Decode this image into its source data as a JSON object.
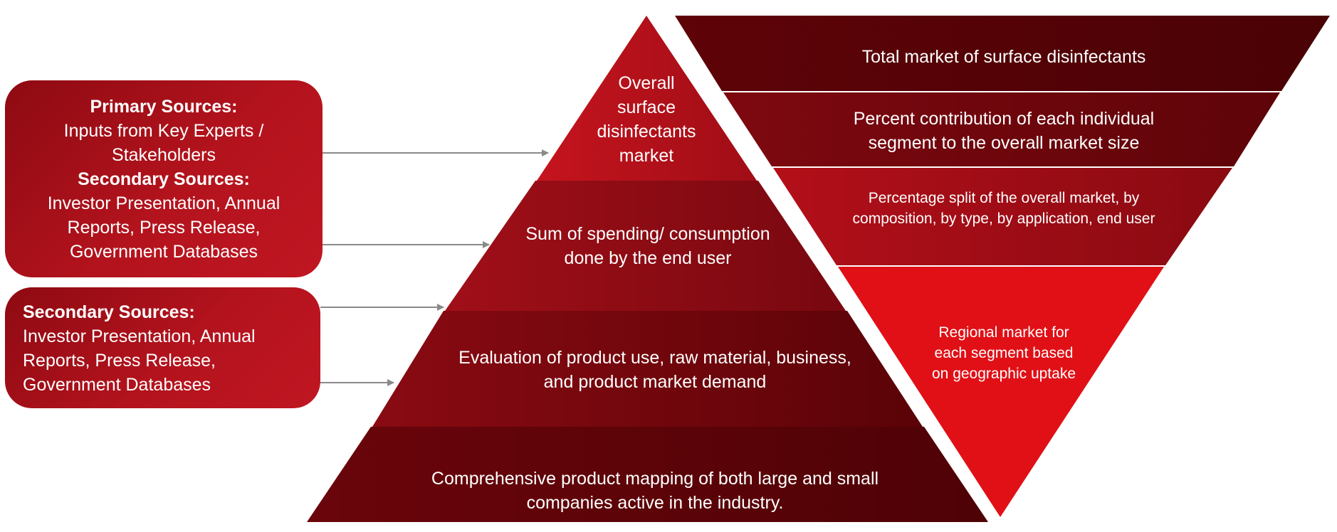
{
  "left_boxes": {
    "primary_secondary": {
      "primary_heading": "Primary Sources:",
      "primary_lines": [
        "Inputs from Key Experts /",
        "Stakeholders"
      ],
      "secondary_heading": "Secondary Sources:",
      "secondary_lines": [
        "Investor Presentation, Annual",
        "Reports, Press Release,",
        "Government Databases"
      ]
    },
    "secondary_only": {
      "secondary_heading": "Secondary Sources:",
      "secondary_lines": [
        "Investor Presentation, Annual",
        "Reports, Press Release,",
        "Government Databases"
      ]
    }
  },
  "pyramid": {
    "levels": [
      [
        "Overall",
        "surface",
        "disinfectants",
        "market"
      ],
      [
        "Sum of spending/ consumption",
        "done by the end user"
      ],
      [
        "Evaluation of product use, raw material, business,",
        "and product market demand"
      ],
      [
        "Comprehensive product mapping of both large and small",
        "companies active in the industry."
      ]
    ]
  },
  "funnel": {
    "levels": [
      [
        "Total market of surface disinfectants"
      ],
      [
        "Percent contribution of each individual",
        "segment to the overall market size"
      ],
      [
        "Percentage split of the overall market, by",
        "composition, by type, by application, end user"
      ],
      [
        "Regional market for",
        "each segment based",
        "on geographic uptake"
      ]
    ]
  },
  "colors": {
    "dark_maroon": "#5a0308",
    "maroon": "#7a0a12",
    "red": "#a8101a",
    "bright_red": "#e01016",
    "arrow": "#8a8a8a"
  },
  "icons": [
    "arrow-right-icon"
  ]
}
